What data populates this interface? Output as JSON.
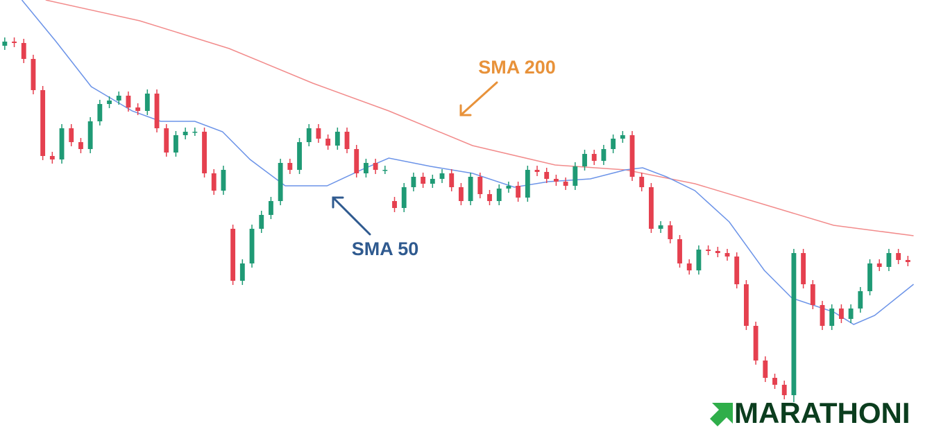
{
  "chart_data": {
    "type": "candlestick",
    "xlim": [
      -0.5,
      96
    ],
    "ylim": [
      0,
      626
    ],
    "up_color": "#1f9a75",
    "down_color": "#e5404f",
    "candles": {
      "open": [
        560,
        566,
        564,
        541,
        496,
        401,
        396,
        441,
        421,
        411,
        451,
        476,
        481,
        488,
        471,
        466,
        491,
        441,
        406,
        431,
        436,
        436,
        376,
        351,
        296,
        221,
        246,
        296,
        316,
        336,
        391,
        381,
        421,
        441,
        426,
        416,
        436,
        411,
        376,
        391,
        381,
        336,
        326,
        356,
        371,
        361,
        368,
        376,
        356,
        336,
        371,
        346,
        336,
        354,
        358,
        341,
        381,
        378,
        368,
        364,
        358,
        386,
        404,
        394,
        411,
        426,
        431,
        371,
        356,
        296,
        301,
        281,
        246,
        236,
        266,
        264,
        261,
        256,
        216,
        156,
        106,
        81,
        71,
        56,
        261,
        216,
        186,
        156,
        181,
        166,
        181,
        206,
        246,
        241,
        261,
        251
      ],
      "high": [
        572,
        572,
        570,
        547,
        502,
        407,
        447,
        447,
        427,
        457,
        482,
        487,
        494,
        494,
        477,
        497,
        497,
        447,
        437,
        442,
        442,
        442,
        382,
        387,
        302,
        252,
        302,
        322,
        342,
        397,
        397,
        427,
        447,
        447,
        432,
        442,
        442,
        417,
        397,
        397,
        387,
        342,
        362,
        377,
        377,
        374,
        382,
        382,
        362,
        377,
        377,
        352,
        360,
        364,
        364,
        387,
        387,
        384,
        374,
        370,
        392,
        410,
        410,
        417,
        432,
        437,
        437,
        377,
        362,
        307,
        307,
        287,
        252,
        272,
        272,
        270,
        267,
        262,
        222,
        162,
        112,
        87,
        77,
        267,
        267,
        222,
        192,
        187,
        187,
        187,
        212,
        252,
        252,
        267,
        267,
        257
      ],
      "low": [
        554,
        558,
        535,
        490,
        395,
        390,
        390,
        415,
        405,
        405,
        445,
        470,
        475,
        465,
        460,
        460,
        435,
        400,
        400,
        425,
        430,
        370,
        345,
        345,
        215,
        215,
        240,
        290,
        310,
        330,
        375,
        375,
        415,
        420,
        410,
        410,
        405,
        370,
        370,
        375,
        375,
        320,
        320,
        350,
        355,
        355,
        362,
        350,
        330,
        330,
        340,
        330,
        330,
        348,
        335,
        335,
        372,
        362,
        358,
        352,
        352,
        380,
        388,
        388,
        405,
        420,
        365,
        350,
        290,
        290,
        275,
        240,
        230,
        230,
        258,
        255,
        250,
        210,
        150,
        100,
        75,
        65,
        50,
        46,
        210,
        180,
        150,
        150,
        160,
        160,
        175,
        200,
        235,
        235,
        245,
        242
      ],
      "close": [
        566,
        564,
        541,
        496,
        401,
        396,
        441,
        421,
        411,
        451,
        476,
        481,
        488,
        471,
        466,
        491,
        441,
        406,
        431,
        436,
        436,
        376,
        351,
        381,
        221,
        246,
        296,
        316,
        336,
        391,
        381,
        421,
        441,
        426,
        416,
        436,
        411,
        376,
        391,
        381,
        381,
        326,
        356,
        371,
        361,
        368,
        376,
        356,
        336,
        371,
        346,
        336,
        354,
        358,
        341,
        381,
        378,
        368,
        364,
        358,
        386,
        404,
        394,
        411,
        426,
        431,
        371,
        356,
        296,
        301,
        281,
        246,
        236,
        266,
        264,
        261,
        256,
        216,
        156,
        106,
        81,
        71,
        56,
        261,
        216,
        186,
        156,
        181,
        166,
        181,
        206,
        246,
        241,
        261,
        251,
        248
      ]
    },
    "series": [
      {
        "name": "SMA 200",
        "color": "#f28b8b",
        "label_color": "#e8923a",
        "x": [
          4.3,
          14.2,
          23.6,
          32.4,
          40.4,
          49.2,
          57.9,
          65.3,
          72.6,
          79.9,
          87.2,
          95.6
        ],
        "values": [
          626,
          596,
          556,
          506,
          466,
          416,
          388,
          381,
          361,
          331,
          301,
          286
        ]
      },
      {
        "name": "SMA 50",
        "color": "#6b93e8",
        "label_color": "#2f5a8f",
        "x": [
          1.8,
          5.4,
          9.1,
          13.4,
          16.4,
          20.0,
          22.9,
          25.8,
          29.5,
          33.9,
          37.5,
          40.4,
          44.8,
          49.2,
          53.6,
          57.2,
          61.6,
          65.3,
          67.1,
          69.6,
          72.6,
          76.2,
          79.9,
          82.8,
          87.2,
          89.3,
          91.5,
          95.6
        ],
        "values": [
          626,
          566,
          501,
          466,
          451,
          451,
          436,
          396,
          358,
          358,
          381,
          398,
          386,
          376,
          356,
          364,
          368,
          381,
          384,
          371,
          351,
          306,
          236,
          196,
          176,
          158,
          171,
          216
        ]
      }
    ]
  },
  "logo": "MARATHONI"
}
